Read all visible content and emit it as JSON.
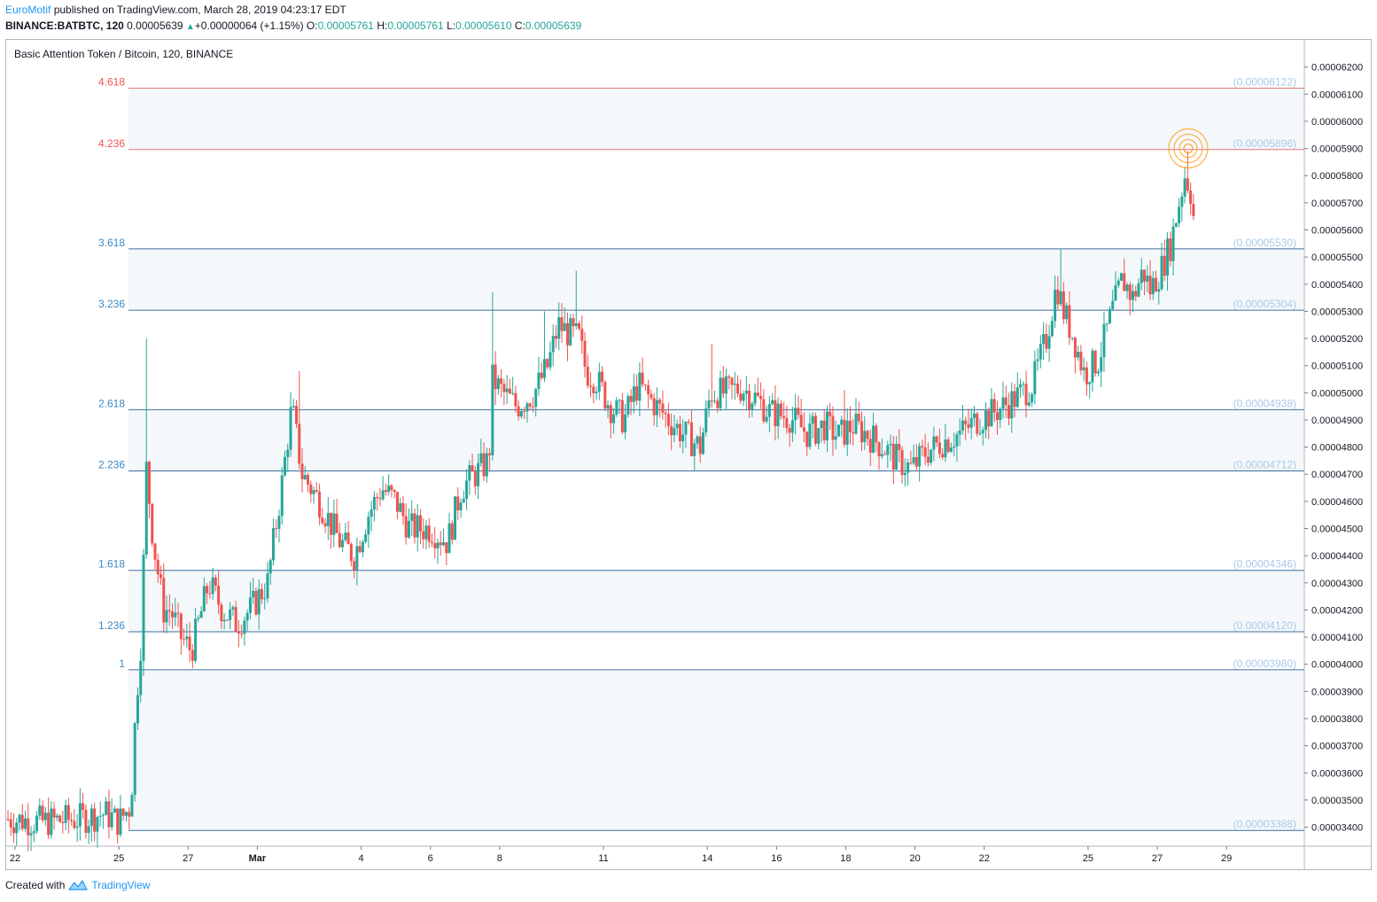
{
  "header": {
    "author": "EuroMotif",
    "published_text": "published on TradingView.com, March 28, 2019 04:23:17 EDT",
    "symbol_interval": "BINANCE:BATBTC, 120",
    "last_price": "0.00005639",
    "up_arrow": "▲",
    "change": "+0.00000064 (+1.15%)",
    "open_label": "O:",
    "open": "0.00005761",
    "high_label": "H:",
    "high": "0.00005761",
    "low_label": "L:",
    "low": "0.00005610",
    "close_label": "C:",
    "close": "0.00005639"
  },
  "footer": {
    "created_with": "Created with",
    "brand": "TradingView",
    "icon": "tradingview-logo-icon"
  },
  "chart_data": {
    "type": "candlestick",
    "title": "Basic Attention Token / Bitcoin, 120, BINANCE",
    "ylim": [
      3.33e-05,
      6.3e-05
    ],
    "yticks": [
      "0.00003400",
      "0.00003500",
      "0.00003600",
      "0.00003700",
      "0.00003800",
      "0.00003900",
      "0.00004000",
      "0.00004100",
      "0.00004200",
      "0.00004300",
      "0.00004400",
      "0.00004500",
      "0.00004600",
      "0.00004700",
      "0.00004800",
      "0.00004900",
      "0.00005000",
      "0.00005100",
      "0.00005200",
      "0.00005300",
      "0.00005400",
      "0.00005500",
      "0.00005600",
      "0.00005700",
      "0.00005800",
      "0.00005900",
      "0.00006000",
      "0.00006100",
      "0.00006200"
    ],
    "xlim": [
      0,
      37.3
    ],
    "xticks": [
      {
        "label": "22",
        "x": 0
      },
      {
        "label": "25",
        "x": 3
      },
      {
        "label": "27",
        "x": 5
      },
      {
        "label": "Mar",
        "x": 7,
        "bold": true
      },
      {
        "label": "4",
        "x": 10
      },
      {
        "label": "6",
        "x": 12
      },
      {
        "label": "8",
        "x": 14
      },
      {
        "label": "11",
        "x": 17
      },
      {
        "label": "14",
        "x": 20
      },
      {
        "label": "16",
        "x": 22
      },
      {
        "label": "18",
        "x": 24
      },
      {
        "label": "20",
        "x": 26
      },
      {
        "label": "22",
        "x": 28
      },
      {
        "label": "25",
        "x": 31
      },
      {
        "label": "27",
        "x": 33
      },
      {
        "label": "29",
        "x": 35
      }
    ],
    "fib_levels": [
      {
        "ratio": "4.618",
        "price": "(0.00006122)",
        "value": 6.122e-05,
        "color": "#ef5350"
      },
      {
        "ratio": "4.236",
        "price": "(0.00005896)",
        "value": 5.896e-05,
        "color": "#ef5350"
      },
      {
        "ratio": "3.618",
        "price": "(0.00005530)",
        "value": 5.53e-05,
        "color": "#2962ff"
      },
      {
        "ratio": "3.236",
        "price": "(0.00005304)",
        "value": 5.304e-05,
        "color": "#2962ff"
      },
      {
        "ratio": "2.618",
        "price": "(0.00004938)",
        "value": 4.938e-05,
        "color": "#2962ff"
      },
      {
        "ratio": "2.236",
        "price": "(0.00004712)",
        "value": 4.712e-05,
        "color": "#2962ff"
      },
      {
        "ratio": "1.618",
        "price": "(0.00004346)",
        "value": 4.346e-05,
        "color": "#2962ff"
      },
      {
        "ratio": "1.236",
        "price": "(0.00004120)",
        "value": 4.12e-05,
        "color": "#2962ff"
      },
      {
        "ratio": "1",
        "price": "(0.00003980)",
        "value": 3.98e-05,
        "color": "#2962ff"
      },
      {
        "ratio": "",
        "price": "(0.00003388)",
        "value": 3.388e-05,
        "color": "#2962ff"
      }
    ],
    "price_path": [
      [
        0.0,
        3.43e-05
      ],
      [
        1.0,
        3.42e-05
      ],
      [
        2.0,
        3.43e-05
      ],
      [
        2.8,
        3.45e-05
      ],
      [
        3.2,
        3.42e-05
      ],
      [
        3.55,
        3.48e-05
      ],
      [
        3.7,
        3.85e-05
      ],
      [
        3.85,
        4.1e-05
      ],
      [
        4.0,
        4.72e-05
      ],
      [
        4.2,
        4.45e-05
      ],
      [
        4.5,
        4.2e-05
      ],
      [
        4.7,
        4.2e-05
      ],
      [
        5.0,
        4.1e-05
      ],
      [
        5.3,
        4.05e-05
      ],
      [
        5.8,
        4.3e-05
      ],
      [
        6.2,
        4.2e-05
      ],
      [
        6.6,
        4.15e-05
      ],
      [
        7.0,
        4.2e-05
      ],
      [
        7.5,
        4.3e-05
      ],
      [
        7.9,
        4.65e-05
      ],
      [
        8.2,
        4.95e-05
      ],
      [
        8.5,
        4.7e-05
      ],
      [
        9.0,
        4.6e-05
      ],
      [
        9.6,
        4.45e-05
      ],
      [
        10.0,
        4.4e-05
      ],
      [
        10.4,
        4.55e-05
      ],
      [
        10.8,
        4.65e-05
      ],
      [
        11.2,
        4.6e-05
      ],
      [
        11.6,
        4.5e-05
      ],
      [
        12.2,
        4.5e-05
      ],
      [
        12.7,
        4.45e-05
      ],
      [
        13.1,
        4.65e-05
      ],
      [
        13.5,
        4.7e-05
      ],
      [
        13.9,
        4.75e-05
      ],
      [
        14.0,
        5.05e-05
      ],
      [
        14.3,
        5e-05
      ],
      [
        14.7,
        4.95e-05
      ],
      [
        15.2,
        5e-05
      ],
      [
        15.6,
        5.1e-05
      ],
      [
        15.9,
        5.25e-05
      ],
      [
        16.2,
        5.22e-05
      ],
      [
        16.5,
        5.2e-05
      ],
      [
        16.7,
        5.08e-05
      ],
      [
        17.0,
        5.05e-05
      ],
      [
        17.4,
        4.95e-05
      ],
      [
        17.8,
        4.9e-05
      ],
      [
        18.2,
        5.03e-05
      ],
      [
        18.6,
        4.97e-05
      ],
      [
        19.1,
        4.9e-05
      ],
      [
        19.5,
        4.85e-05
      ],
      [
        20.0,
        4.8e-05
      ],
      [
        20.3,
        5e-05
      ],
      [
        20.7,
        5e-05
      ],
      [
        21.2,
        5.02e-05
      ],
      [
        21.6,
        4.98e-05
      ],
      [
        22.0,
        4.93e-05
      ],
      [
        22.6,
        4.91e-05
      ],
      [
        23.1,
        4.85e-05
      ],
      [
        23.6,
        4.88e-05
      ],
      [
        24.0,
        4.84e-05
      ],
      [
        24.4,
        4.88e-05
      ],
      [
        24.8,
        4.85e-05
      ],
      [
        25.3,
        4.8e-05
      ],
      [
        25.7,
        4.75e-05
      ],
      [
        26.1,
        4.72e-05
      ],
      [
        26.5,
        4.78e-05
      ],
      [
        27.0,
        4.82e-05
      ],
      [
        27.5,
        4.85e-05
      ],
      [
        28.0,
        4.9e-05
      ],
      [
        28.5,
        4.93e-05
      ],
      [
        29.0,
        4.97e-05
      ],
      [
        29.6,
        5.03e-05
      ],
      [
        30.0,
        5.2e-05
      ],
      [
        30.3,
        5.4e-05
      ],
      [
        30.5,
        5.3e-05
      ],
      [
        30.8,
        5.2e-05
      ],
      [
        31.1,
        5.07e-05
      ],
      [
        31.5,
        5.12e-05
      ],
      [
        31.9,
        5.3e-05
      ],
      [
        32.2,
        5.42e-05
      ],
      [
        32.5,
        5.35e-05
      ],
      [
        32.8,
        5.45e-05
      ],
      [
        33.0,
        5.38e-05
      ],
      [
        33.3,
        5.45e-05
      ],
      [
        33.6,
        5.55e-05
      ],
      [
        33.8,
        5.68e-05
      ],
      [
        34.0,
        5.8e-05
      ],
      [
        34.15,
        5.76e-05
      ],
      [
        34.25,
        5.65e-05
      ]
    ],
    "spikes": [
      {
        "x": 4.0,
        "high": 5.2e-05
      },
      {
        "x": 8.4,
        "high": 5.08e-05
      },
      {
        "x": 14.0,
        "high": 5.37e-05
      },
      {
        "x": 15.5,
        "high": 5.3e-05
      },
      {
        "x": 16.4,
        "high": 5.45e-05
      },
      {
        "x": 20.3,
        "high": 5.18e-05
      },
      {
        "x": 24.2,
        "high": 5.01e-05
      },
      {
        "x": 30.4,
        "high": 5.53e-05
      },
      {
        "x": 34.1,
        "high": 5.89e-05
      }
    ],
    "marker": {
      "x": 34.1,
      "value": 5.9e-05,
      "color": "#ff9800"
    },
    "up_color": "#26a69a",
    "down_color": "#ef5350",
    "band_color": "#f5f8fb"
  }
}
